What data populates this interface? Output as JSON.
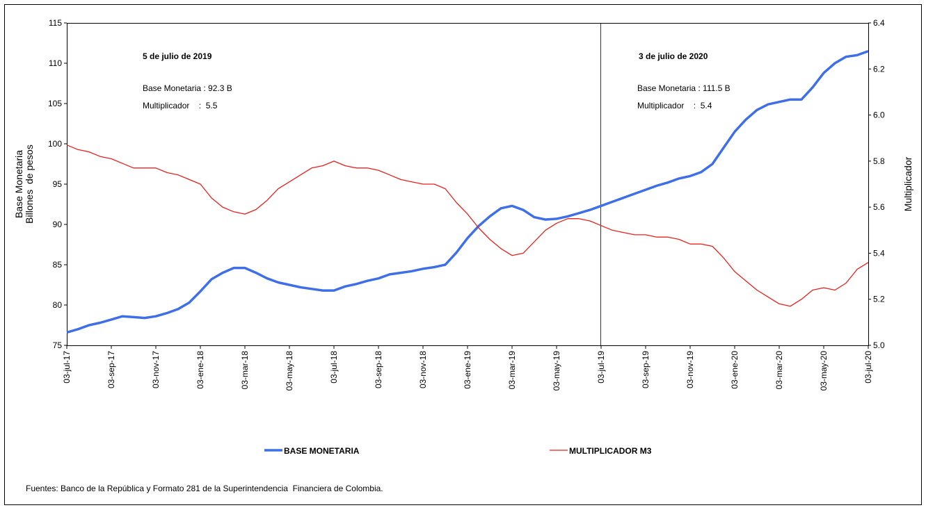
{
  "chart_data": {
    "type": "line",
    "annotations": [
      {
        "title": "5 de julio de 2019",
        "lines": [
          "Base Monetaria : 92.3 B",
          "Multiplicador    :  5.5"
        ]
      },
      {
        "title": "3 de julio de 2020",
        "lines": [
          "Base Monetaria : 111.5 B",
          "Multiplicador    :  5.4"
        ]
      }
    ],
    "y_label": [
      "Base Monetaria",
      "Billones  de pesos"
    ],
    "y2_label": "Multiplicador",
    "source": "Fuentes: Banco de la República y Formato 281 de la Superintendencia  Financiera de Colombia.",
    "categories": [
      "03-jul-17",
      null,
      null,
      null,
      "03-sep-17",
      null,
      null,
      null,
      "03-nov-17",
      null,
      null,
      null,
      "03-ene-18",
      null,
      null,
      null,
      "03-mar-18",
      null,
      null,
      null,
      "03-may-18",
      null,
      null,
      null,
      "03-jul-18",
      null,
      null,
      null,
      "03-sep-18",
      null,
      null,
      null,
      "03-nov-18",
      null,
      null,
      null,
      "03-ene-19",
      null,
      null,
      null,
      "03-mar-19",
      null,
      null,
      null,
      "03-may-19",
      null,
      null,
      null,
      "03-jul-19",
      null,
      null,
      null,
      "03-sep-19",
      null,
      null,
      null,
      "03-nov-19",
      null,
      null,
      null,
      "03-ene-20",
      null,
      null,
      null,
      "03-mar-20",
      null,
      null,
      null,
      "03-may-20",
      null,
      null,
      null,
      "03-jul-20"
    ],
    "series": [
      {
        "name": "BASE MONETARIA",
        "color": "#3f6fe8",
        "width": 3.5,
        "values": [
          76.6,
          77.0,
          77.5,
          77.8,
          78.2,
          78.6,
          78.5,
          78.4,
          78.6,
          79.0,
          79.5,
          80.3,
          81.7,
          83.2,
          84.0,
          84.6,
          84.6,
          84.0,
          83.3,
          82.8,
          82.5,
          82.2,
          82.0,
          81.8,
          81.8,
          82.3,
          82.6,
          83.0,
          83.3,
          83.8,
          84.0,
          84.2,
          84.5,
          84.7,
          85.0,
          86.5,
          88.3,
          89.8,
          91.0,
          92.0,
          92.3,
          91.8,
          90.9,
          90.6,
          90.7,
          91.0,
          91.4,
          91.8,
          92.3,
          92.8,
          93.3,
          93.8,
          94.3,
          94.8,
          95.2,
          95.7,
          96.0,
          96.5,
          97.5,
          99.5,
          101.5,
          103.0,
          104.2,
          104.9,
          105.2,
          105.5,
          105.5,
          107.0,
          108.8,
          110.0,
          110.8,
          111.0,
          111.5
        ]
      },
      {
        "name": "MULTIPLICADOR M3",
        "color": "#e8201e",
        "width": 1.3,
        "axis": "y2",
        "values": [
          5.87,
          5.85,
          5.84,
          5.82,
          5.81,
          5.79,
          5.77,
          5.77,
          5.77,
          5.75,
          5.74,
          5.72,
          5.7,
          5.64,
          5.6,
          5.58,
          5.57,
          5.59,
          5.63,
          5.68,
          5.71,
          5.74,
          5.77,
          5.78,
          5.8,
          5.78,
          5.77,
          5.77,
          5.76,
          5.74,
          5.72,
          5.71,
          5.7,
          5.7,
          5.68,
          5.62,
          5.57,
          5.51,
          5.46,
          5.42,
          5.39,
          5.4,
          5.45,
          5.5,
          5.53,
          5.55,
          5.55,
          5.54,
          5.52,
          5.5,
          5.49,
          5.48,
          5.48,
          5.47,
          5.47,
          5.46,
          5.44,
          5.44,
          5.43,
          5.38,
          5.32,
          5.28,
          5.24,
          5.21,
          5.18,
          5.17,
          5.2,
          5.24,
          5.25,
          5.24,
          5.27,
          5.33,
          5.36
        ]
      }
    ],
    "ylim": [
      75,
      115
    ],
    "yticks": [
      75,
      80,
      85,
      90,
      95,
      100,
      105,
      110,
      115
    ],
    "y2lim": [
      5.0,
      6.4
    ],
    "y2ticks": [
      {
        "value": 5.0,
        "label": "5.0"
      },
      5.2,
      5.4,
      5.6,
      5.8,
      {
        "value": 6.0,
        "label": "6.0"
      },
      6.2,
      6.4
    ]
  }
}
